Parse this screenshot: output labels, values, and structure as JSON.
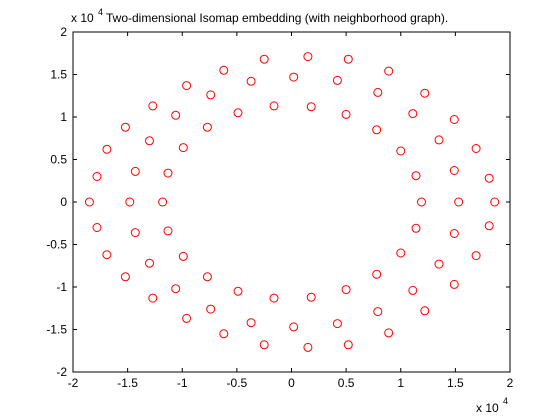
{
  "chart_data": {
    "type": "scatter",
    "title": "Two-dimensional Isomap embedding (with neighborhood graph).",
    "xlabel": "",
    "ylabel": "",
    "xlim": [
      -20000,
      20000
    ],
    "ylim": [
      -20000,
      20000
    ],
    "x_ticks": [
      -20000,
      -15000,
      -10000,
      -5000,
      0,
      5000,
      10000,
      15000,
      20000
    ],
    "y_ticks": [
      -20000,
      -15000,
      -10000,
      -5000,
      0,
      5000,
      10000,
      15000,
      20000
    ],
    "x_tick_labels": [
      "-2",
      "-1.5",
      "-1",
      "-0.5",
      "0",
      "0.5",
      "1",
      "1.5",
      "2"
    ],
    "y_tick_labels": [
      "-2",
      "-1.5",
      "-1",
      "-0.5",
      "0",
      "0.5",
      "1",
      "1.5",
      "2"
    ],
    "x_exponent": {
      "base": "x 10",
      "power": "4"
    },
    "y_exponent": {
      "base": "x 10",
      "power": "4"
    },
    "marker": "circle",
    "grid": false,
    "series": [
      {
        "color": "#ff0000",
        "points": [
          [
            -18500,
            0
          ],
          [
            -17800,
            3000
          ],
          [
            -17800,
            -3000
          ],
          [
            -16900,
            6200
          ],
          [
            -16900,
            -6200
          ],
          [
            -15200,
            8800
          ],
          [
            -15200,
            -8800
          ],
          [
            -12700,
            11300
          ],
          [
            -12700,
            -11300
          ],
          [
            -9600,
            13700
          ],
          [
            -9600,
            -13700
          ],
          [
            -6200,
            15500
          ],
          [
            -6200,
            -15500
          ],
          [
            -2500,
            16800
          ],
          [
            -2500,
            -16800
          ],
          [
            1500,
            17100
          ],
          [
            1500,
            -17100
          ],
          [
            5200,
            16800
          ],
          [
            5200,
            -16800
          ],
          [
            8900,
            15400
          ],
          [
            8900,
            -15400
          ],
          [
            12200,
            12800
          ],
          [
            12200,
            -12800
          ],
          [
            14900,
            9700
          ],
          [
            14900,
            -9700
          ],
          [
            16900,
            6300
          ],
          [
            16900,
            -6300
          ],
          [
            18100,
            2800
          ],
          [
            18100,
            -2800
          ],
          [
            18600,
            0
          ],
          [
            -14800,
            0
          ],
          [
            -14300,
            3600
          ],
          [
            -14300,
            -3600
          ],
          [
            -13000,
            7200
          ],
          [
            -13000,
            -7200
          ],
          [
            -10600,
            10200
          ],
          [
            -10600,
            -10200
          ],
          [
            -7400,
            12600
          ],
          [
            -7400,
            -12600
          ],
          [
            -3700,
            14200
          ],
          [
            -3700,
            -14200
          ],
          [
            200,
            14700
          ],
          [
            200,
            -14700
          ],
          [
            4200,
            14300
          ],
          [
            4200,
            -14300
          ],
          [
            7900,
            12900
          ],
          [
            7900,
            -12900
          ],
          [
            11100,
            10400
          ],
          [
            11100,
            -10400
          ],
          [
            13500,
            7300
          ],
          [
            13500,
            -7300
          ],
          [
            14900,
            3700
          ],
          [
            14900,
            -3700
          ],
          [
            15300,
            0
          ],
          [
            -11800,
            0
          ],
          [
            -11300,
            3400
          ],
          [
            -11300,
            -3400
          ],
          [
            -9900,
            6400
          ],
          [
            -9900,
            -6400
          ],
          [
            -7700,
            8800
          ],
          [
            -7700,
            -8800
          ],
          [
            -4900,
            10500
          ],
          [
            -4900,
            -10500
          ],
          [
            -1600,
            11300
          ],
          [
            -1600,
            -11300
          ],
          [
            1800,
            11200
          ],
          [
            1800,
            -11200
          ],
          [
            5000,
            10300
          ],
          [
            5000,
            -10300
          ],
          [
            7800,
            8500
          ],
          [
            7800,
            -8500
          ],
          [
            10000,
            6000
          ],
          [
            10000,
            -6000
          ],
          [
            11400,
            3100
          ],
          [
            11400,
            -3100
          ],
          [
            11900,
            0
          ]
        ]
      }
    ]
  }
}
